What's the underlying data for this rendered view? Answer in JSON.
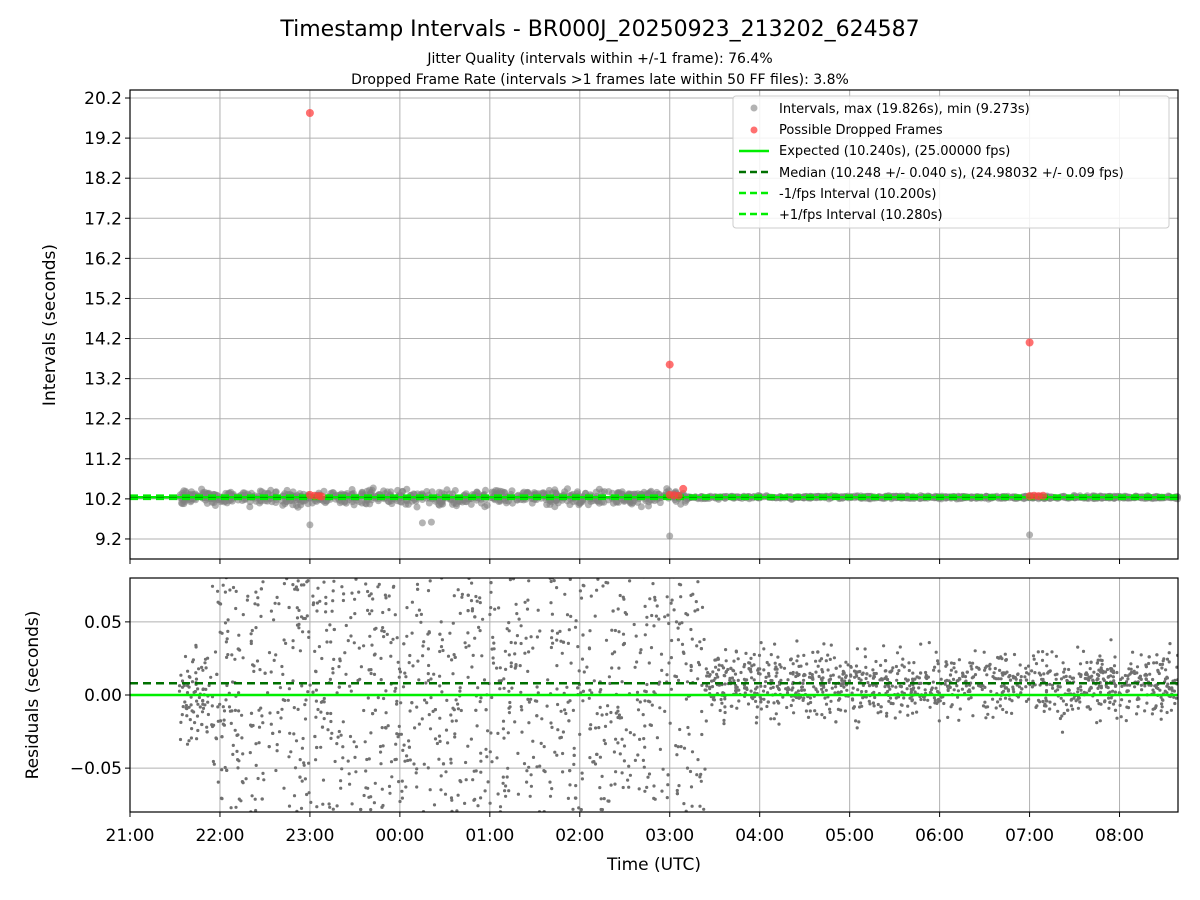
{
  "chart_data": [
    {
      "type": "scatter",
      "panel": "intervals",
      "title": "Timestamp Intervals - BR000J_20250923_213202_624587",
      "subtitle_lines": [
        "Jitter Quality (intervals within +/-1 frame): 76.4%",
        "Dropped Frame Rate (intervals >1 frames late within 50 FF files): 3.8%"
      ],
      "ylabel": "Intervals (seconds)",
      "ylim": [
        8.7,
        20.4
      ],
      "xlim_hours": [
        21.0,
        32.65
      ],
      "yticks": [
        "9.2",
        "10.2",
        "11.2",
        "12.2",
        "13.2",
        "14.2",
        "15.2",
        "16.2",
        "17.2",
        "18.2",
        "19.2",
        "20.2"
      ],
      "grid": true,
      "legend_position": "top-right",
      "legend": [
        "Intervals, max (19.826s), min (9.273s)",
        "Possible Dropped Frames",
        "Expected (10.240s), (25.00000 fps)",
        "Median (10.248 +/- 0.040 s), (24.98032 +/- 0.09 fps)",
        "-1/fps Interval (10.200s)",
        "+1/fps Interval (10.280s)"
      ],
      "series": [
        {
          "name": "Intervals",
          "color": "#808080",
          "range_hours": [
            21.55,
            32.65
          ],
          "max": 19.826,
          "min": 9.273,
          "center": 10.24
        },
        {
          "name": "Possible Dropped Frames",
          "color": "#ff4040",
          "points": [
            {
              "x": 23.0,
              "y": 19.826
            },
            {
              "x": 27.0,
              "y": 13.55
            },
            {
              "x": 31.0,
              "y": 14.1
            },
            {
              "x": 23.0,
              "y": 10.3
            },
            {
              "x": 23.05,
              "y": 10.28
            },
            {
              "x": 23.1,
              "y": 10.27
            },
            {
              "x": 23.13,
              "y": 10.26
            },
            {
              "x": 27.0,
              "y": 10.3
            },
            {
              "x": 27.05,
              "y": 10.29
            },
            {
              "x": 27.1,
              "y": 10.28
            },
            {
              "x": 27.15,
              "y": 10.45
            },
            {
              "x": 31.0,
              "y": 10.27
            },
            {
              "x": 31.05,
              "y": 10.28
            },
            {
              "x": 31.1,
              "y": 10.27
            },
            {
              "x": 31.15,
              "y": 10.28
            }
          ]
        },
        {
          "name": "Expected",
          "value": 10.24,
          "color": "#00ee00",
          "style": "solid"
        },
        {
          "name": "Median",
          "value": 10.248,
          "color": "#007000",
          "style": "dashed"
        },
        {
          "name": "-1/fps Interval",
          "value": 10.2,
          "color": "#00ee00",
          "style": "dashed"
        },
        {
          "name": "+1/fps Interval",
          "value": 10.28,
          "color": "#00ee00",
          "style": "dashed"
        }
      ]
    },
    {
      "type": "scatter",
      "panel": "residuals",
      "ylabel": "Residuals (seconds)",
      "xlabel": "Time (UTC)",
      "ylim": [
        -0.08,
        0.08
      ],
      "yticks": [
        {
          "value": 0.05,
          "label": "0.05"
        },
        {
          "value": 0.0,
          "label": "0.00"
        },
        {
          "value": -0.05,
          "label": "−0.05"
        }
      ],
      "xticks": [
        "21:00",
        "22:00",
        "23:00",
        "00:00",
        "01:00",
        "02:00",
        "03:00",
        "04:00",
        "05:00",
        "06:00",
        "07:00",
        "08:00"
      ],
      "grid": true,
      "series": [
        {
          "name": "Residuals",
          "color": "#707070",
          "range_hours": [
            21.55,
            32.65
          ],
          "spread_early": 0.06,
          "spread_late": 0.02
        },
        {
          "name": "Expected",
          "value": 0.0,
          "color": "#00ee00",
          "style": "solid"
        },
        {
          "name": "Median",
          "value": 0.008,
          "color": "#007000",
          "style": "dashed"
        }
      ]
    }
  ]
}
